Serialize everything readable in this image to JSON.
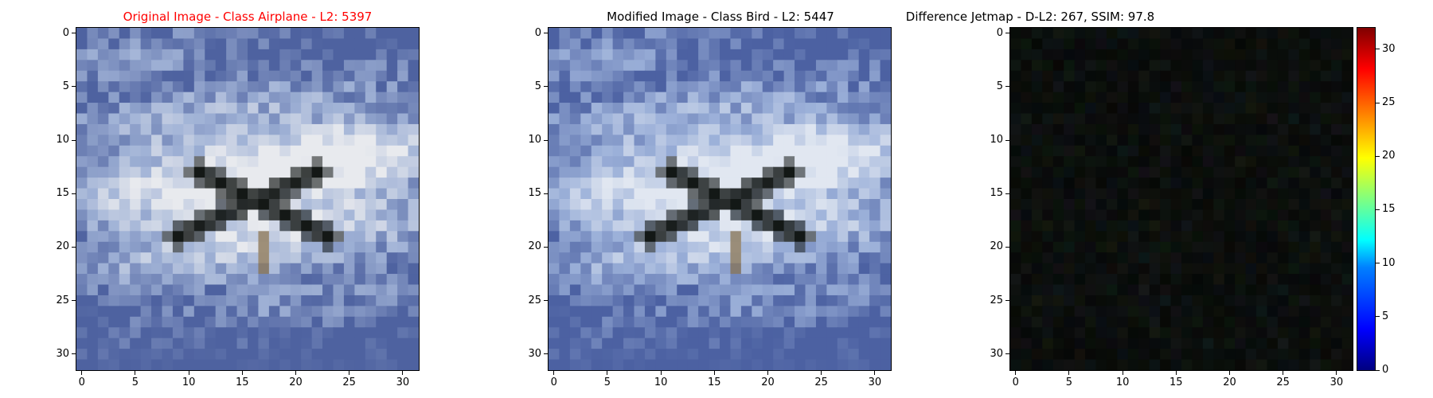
{
  "panels": [
    {
      "title": "Original Image - Class Airplane - L2: 5397",
      "title_color": "#ff0000"
    },
    {
      "title": "Modified Image - Class Bird - L2: 5447",
      "title_color": "#000000"
    },
    {
      "title": "Difference Jetmap - D-L2: 267, SSIM: 97.8",
      "title_color": "#000000"
    }
  ],
  "axis_ticks": {
    "x": [
      "0",
      "5",
      "10",
      "15",
      "20",
      "25",
      "30"
    ],
    "y": [
      "0",
      "5",
      "10",
      "15",
      "20",
      "25",
      "30"
    ]
  },
  "colorbar": {
    "ticks": [
      "0",
      "5",
      "10",
      "15",
      "20",
      "25",
      "30"
    ],
    "colormap": "jet"
  },
  "image_size": 32
}
